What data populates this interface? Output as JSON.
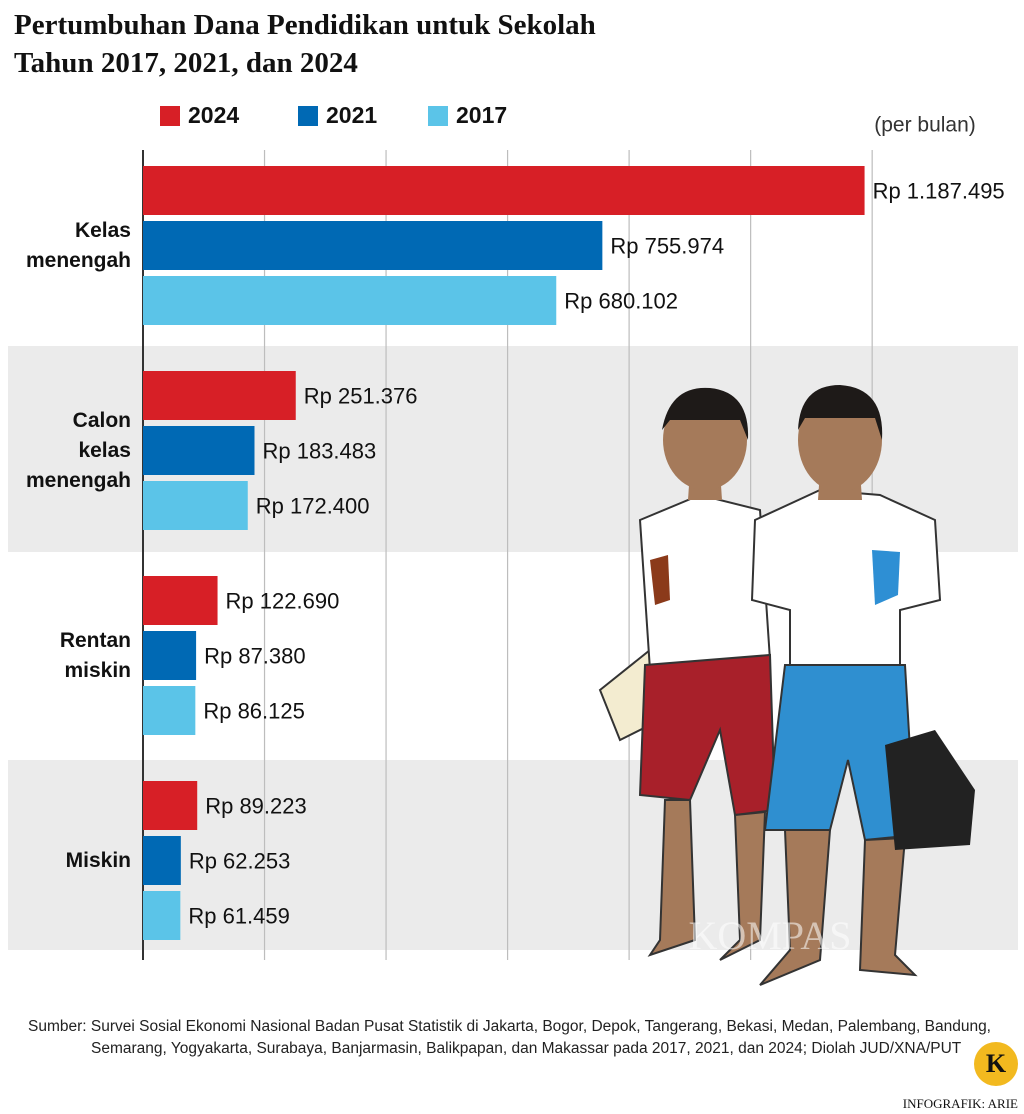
{
  "chart_data": {
    "type": "bar",
    "orientation": "horizontal",
    "title": "Pertumbuhan Dana Pendidikan untuk Sekolah Tahun 2017, 2021, dan 2024",
    "note": "(per bulan)",
    "categories": [
      "Kelas menengah",
      "Calon kelas menengah",
      "Rentan miskin",
      "Miskin"
    ],
    "series": [
      {
        "name": "2024",
        "color": "#d71f26",
        "values": [
          1187495,
          251376,
          122690,
          89223
        ],
        "value_labels": [
          "Rp 1.187.495",
          "Rp 251.376",
          "Rp 122.690",
          "Rp 89.223"
        ]
      },
      {
        "name": "2021",
        "color": "#0069b4",
        "values": [
          755974,
          183483,
          87380,
          62253
        ],
        "value_labels": [
          "Rp 755.974",
          "Rp 183.483",
          "Rp 87.380",
          "Rp 62.253"
        ]
      },
      {
        "name": "2017",
        "color": "#5bc4e8",
        "values": [
          680102,
          172400,
          86125,
          61459
        ],
        "value_labels": [
          "Rp 680.102",
          "Rp 172.400",
          "Rp 86.125",
          "Rp 61.459"
        ]
      }
    ],
    "xlim": [
      0,
      1440000
    ],
    "xticks": [
      200000,
      400000,
      600000,
      800000,
      1000000,
      1200000
    ],
    "grid": true,
    "source": "Sumber: Survei Sosial Ekonomi Nasional Badan Pusat Statistik di Jakarta, Bogor, Depok, Tangerang, Bekasi, Medan, Palembang, Bandung, Semarang, Yogyakarta, Surabaya, Banjarmasin, Balikpapan, dan Makassar pada 2017, 2021, dan 2024; Diolah JUD/XNA/PUT",
    "credit": "INFOGRAFIK: ARIE",
    "logo": "K",
    "watermark": "KOMPAS"
  }
}
